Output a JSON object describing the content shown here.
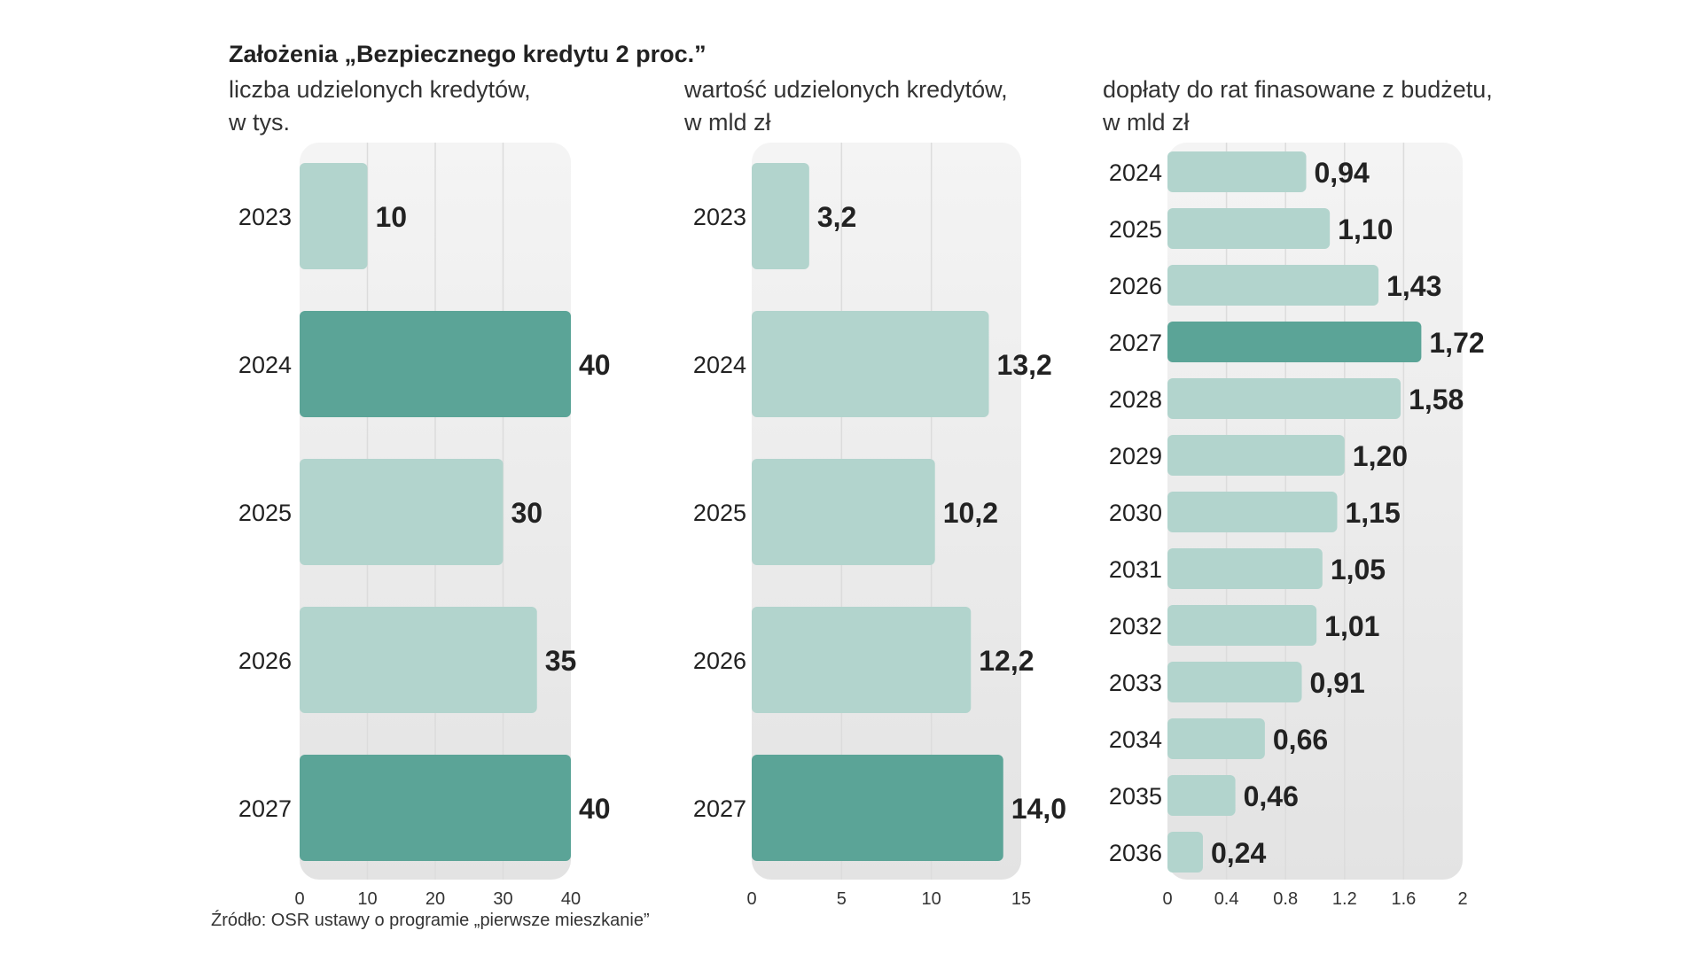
{
  "chart_data": {
    "type": "bar",
    "title": "Założenia „Bezpiecznego kredytu 2 proc.”",
    "source": "Źródło: OSR ustawy o programie „pierwsze mieszkanie”",
    "colors": {
      "bar": "#b2d4cd",
      "highlight": "#5ba497",
      "panel_top": "#f4f4f4",
      "panel_bottom": "#e3e3e3",
      "grid": "#dcdcdc"
    },
    "panels": [
      {
        "subtitle": [
          "liczba udzielonych kredytów,",
          "w tys."
        ],
        "orientation": "horizontal",
        "categories": [
          "2023",
          "2024",
          "2025",
          "2026",
          "2027"
        ],
        "values": [
          10,
          40,
          30,
          35,
          40
        ],
        "value_labels": [
          "10",
          "40",
          "30",
          "35",
          "40"
        ],
        "highlight": [
          false,
          true,
          false,
          false,
          true
        ],
        "xlim": [
          0,
          40
        ],
        "xticks": [
          0,
          10,
          20,
          30,
          40
        ],
        "xtick_labels": [
          "0",
          "10",
          "20",
          "30",
          "40"
        ],
        "grid": true
      },
      {
        "subtitle": [
          "wartość udzielonych kredytów,",
          "w mld zł"
        ],
        "orientation": "horizontal",
        "categories": [
          "2023",
          "2024",
          "2025",
          "2026",
          "2027"
        ],
        "values": [
          3.2,
          13.2,
          10.2,
          12.2,
          14.0
        ],
        "value_labels": [
          "3,2",
          "13,2",
          "10,2",
          "12,2",
          "14,0"
        ],
        "highlight": [
          false,
          false,
          false,
          false,
          true
        ],
        "xlim": [
          0,
          15
        ],
        "xticks": [
          0,
          5,
          10,
          15
        ],
        "xtick_labels": [
          "0",
          "5",
          "10",
          "15"
        ],
        "grid": true
      },
      {
        "subtitle": [
          "dopłaty do rat finasowane z budżetu,",
          "w mld zł"
        ],
        "orientation": "horizontal",
        "categories": [
          "2024",
          "2025",
          "2026",
          "2027",
          "2028",
          "2029",
          "2030",
          "2031",
          "2032",
          "2033",
          "2034",
          "2035",
          "2036"
        ],
        "values": [
          0.94,
          1.1,
          1.43,
          1.72,
          1.58,
          1.2,
          1.15,
          1.05,
          1.01,
          0.91,
          0.66,
          0.46,
          0.24
        ],
        "value_labels": [
          "0,94",
          "1,10",
          "1,43",
          "1,72",
          "1,58",
          "1,20",
          "1,15",
          "1,05",
          "1,01",
          "0,91",
          "0,66",
          "0,46",
          "0,24"
        ],
        "highlight": [
          false,
          false,
          false,
          true,
          false,
          false,
          false,
          false,
          false,
          false,
          false,
          false,
          false
        ],
        "xlim": [
          0,
          2
        ],
        "xticks": [
          0,
          0.4,
          0.8,
          1.2,
          1.6,
          2
        ],
        "xtick_labels": [
          "0",
          "0.4",
          "0.8",
          "1.2",
          "1.6",
          "2"
        ],
        "grid": true
      }
    ]
  }
}
